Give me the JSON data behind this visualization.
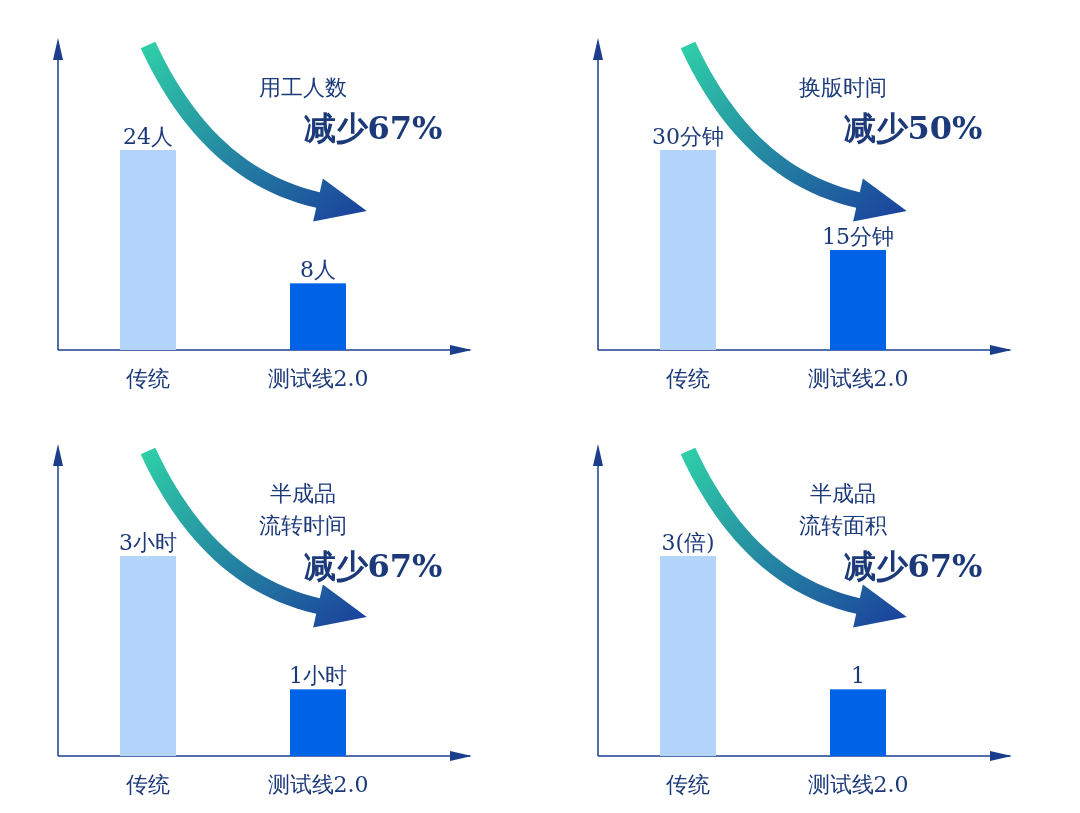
{
  "chart_data": [
    {
      "type": "bar",
      "categories": [
        "传统",
        "测试线2.0"
      ],
      "values": [
        24,
        8
      ],
      "colors": [
        "#b3d4fb",
        "#0062e6"
      ],
      "value_labels": [
        "24人",
        "8人"
      ],
      "annotations": [
        "用工人数",
        "减少67%"
      ]
    },
    {
      "type": "bar",
      "categories": [
        "传统",
        "测试线2.0"
      ],
      "values": [
        30,
        15
      ],
      "colors": [
        "#b3d4fb",
        "#0062e6"
      ],
      "value_labels": [
        "30分钟",
        "15分钟"
      ],
      "annotations": [
        "换版时间",
        "减少50%"
      ]
    },
    {
      "type": "bar",
      "categories": [
        "传统",
        "测试线2.0"
      ],
      "values": [
        3,
        1
      ],
      "colors": [
        "#b3d4fb",
        "#0062e6"
      ],
      "value_labels": [
        "3小时",
        "1小时"
      ],
      "annotations": [
        "半成品",
        "流转时间",
        "减少67%"
      ]
    },
    {
      "type": "bar",
      "categories": [
        "传统",
        "测试线2.0"
      ],
      "values": [
        3,
        1
      ],
      "colors": [
        "#b3d4fb",
        "#0062e6"
      ],
      "value_labels": [
        "3(倍)",
        "1"
      ],
      "annotations": [
        "半成品",
        "流转面积",
        "减少67%"
      ]
    }
  ]
}
